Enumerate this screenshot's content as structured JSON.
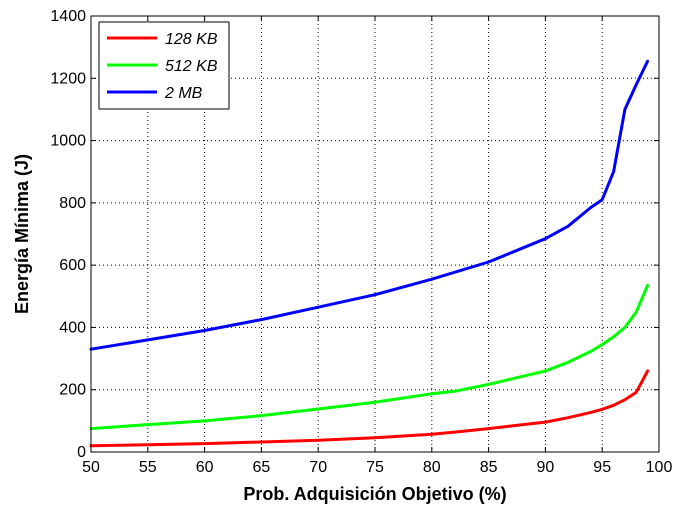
{
  "chart_data": {
    "type": "line",
    "xlabel": "Prob. Adquisición Objetivo (%)",
    "ylabel": "Energía Mínima (J)",
    "xlim": [
      50,
      100
    ],
    "ylim": [
      0,
      1400
    ],
    "xticks": [
      50,
      55,
      60,
      65,
      70,
      75,
      80,
      85,
      90,
      95,
      100
    ],
    "yticks": [
      0,
      200,
      400,
      600,
      800,
      1000,
      1200,
      1400
    ],
    "grid": true,
    "legend_position": "top-left",
    "series": [
      {
        "name": "128 KB",
        "color": "#ff0000",
        "x": [
          50,
          55,
          60,
          65,
          70,
          75,
          80,
          82,
          85,
          88,
          90,
          92,
          94,
          95,
          96,
          97,
          98,
          99
        ],
        "y": [
          20,
          23,
          27,
          32,
          38,
          46,
          57,
          64,
          75,
          88,
          96,
          110,
          127,
          137,
          150,
          168,
          192,
          260
        ]
      },
      {
        "name": "512 KB",
        "color": "#00ff00",
        "x": [
          50,
          55,
          60,
          65,
          70,
          75,
          80,
          82,
          85,
          88,
          90,
          92,
          94,
          95,
          96,
          97,
          98,
          99
        ],
        "y": [
          75,
          88,
          100,
          117,
          138,
          160,
          187,
          195,
          217,
          243,
          260,
          288,
          323,
          345,
          370,
          400,
          450,
          535
        ]
      },
      {
        "name": "2 MB",
        "color": "#0000ff",
        "x": [
          50,
          55,
          60,
          65,
          70,
          75,
          80,
          85,
          90,
          92,
          94,
          95,
          96,
          97,
          98,
          99
        ],
        "y": [
          330,
          360,
          390,
          425,
          465,
          505,
          555,
          610,
          685,
          725,
          785,
          810,
          900,
          1100,
          1180,
          1255
        ]
      }
    ]
  }
}
